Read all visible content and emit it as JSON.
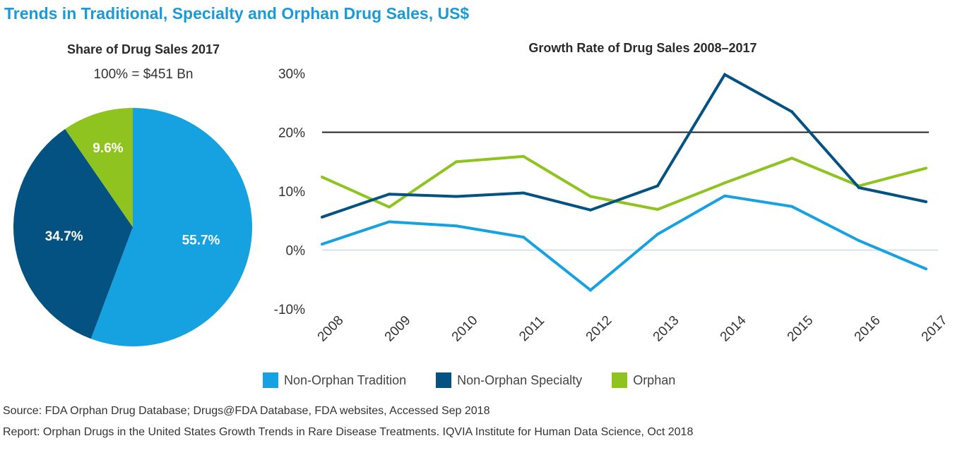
{
  "title": "Trends in Traditional, Specialty and Orphan Drug Sales, US$",
  "colors": {
    "title": "#1a9ad6",
    "traditional": "#16a2e1",
    "specialty": "#045282",
    "orphan": "#8fc31f",
    "reference_line": "#222222",
    "zero_line": "#d9e3e6"
  },
  "chart_data": [
    {
      "type": "pie",
      "title": "Share of Drug Sales 2017",
      "subtitle": "100% = $451 Bn",
      "slices": [
        {
          "label": "55.7%",
          "value": 55.7,
          "series": "Non-Orphan Tradition"
        },
        {
          "label": "34.7%",
          "value": 34.7,
          "series": "Non-Orphan Specialty"
        },
        {
          "label": "9.6%",
          "value": 9.6,
          "series": "Orphan"
        }
      ]
    },
    {
      "type": "line",
      "title": "Growth Rate of Drug Sales 2008–2017",
      "x": [
        "2008",
        "2009",
        "2010",
        "2011",
        "2012",
        "2013",
        "2014",
        "2015",
        "2016",
        "2017"
      ],
      "ylim": [
        -10,
        30
      ],
      "yticks": [
        {
          "value": 30,
          "label": "30%"
        },
        {
          "value": 20,
          "label": "20%"
        },
        {
          "value": 10,
          "label": "10%"
        },
        {
          "value": 0,
          "label": "0%"
        },
        {
          "value": -10,
          "label": "-10%"
        }
      ],
      "reference_line": 20,
      "series": [
        {
          "name": "Non-Orphan Tradition",
          "values": [
            1.0,
            4.8,
            4.1,
            2.2,
            -6.8,
            2.7,
            9.2,
            7.4,
            1.6,
            -3.2
          ]
        },
        {
          "name": "Non-Orphan Specialty",
          "values": [
            5.6,
            9.5,
            9.1,
            9.7,
            6.8,
            10.9,
            29.8,
            23.5,
            10.6,
            8.2
          ]
        },
        {
          "name": "Orphan",
          "values": [
            12.4,
            7.3,
            15.0,
            15.9,
            9.1,
            6.9,
            11.4,
            15.6,
            10.9,
            13.9
          ]
        }
      ],
      "legend_position": "bottom"
    }
  ],
  "source": "Source: FDA Orphan Drug Database;  Drugs@FDA Database, FDA websites, Accessed Sep 2018",
  "report": "Report: Orphan Drugs in the United States Growth Trends in Rare Disease Treatments. IQVIA Institute for Human Data Science, Oct 2018"
}
